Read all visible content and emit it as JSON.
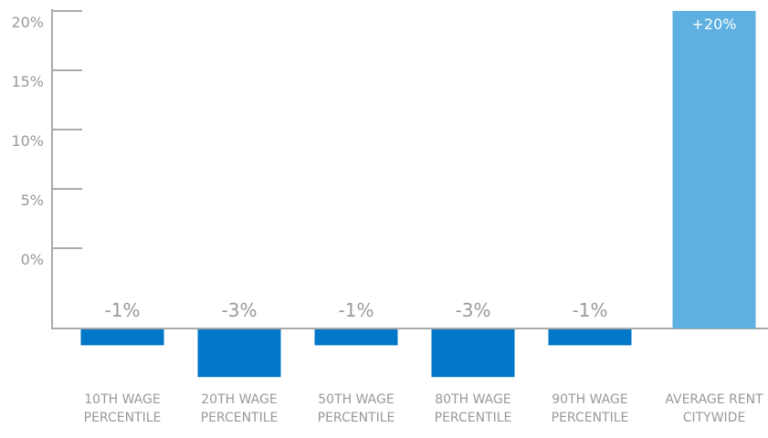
{
  "chart_data": {
    "type": "bar",
    "categories": [
      "10TH WAGE PERCENTILE",
      "20TH WAGE PERCENTILE",
      "50TH WAGE PERCENTILE",
      "80TH WAGE PERCENTILE",
      "90TH WAGE PERCENTILE",
      "AVERAGE RENT CITYWIDE"
    ],
    "values": [
      -1,
      -3,
      -1,
      -3,
      -1,
      20
    ],
    "value_labels": [
      "-1%",
      "-3%",
      "-1%",
      "-3%",
      "-1%",
      "+20%"
    ],
    "colors": [
      "#0077c8",
      "#0077c8",
      "#0077c8",
      "#0077c8",
      "#0077c8",
      "#5db0e0"
    ],
    "ylim": [
      0,
      20
    ],
    "yticks": [
      {
        "value": 0,
        "label": "0%"
      },
      {
        "value": 5,
        "label": "5%"
      },
      {
        "value": 10,
        "label": "10%"
      },
      {
        "value": 15,
        "label": "15%"
      },
      {
        "value": 20,
        "label": "20%"
      }
    ]
  }
}
